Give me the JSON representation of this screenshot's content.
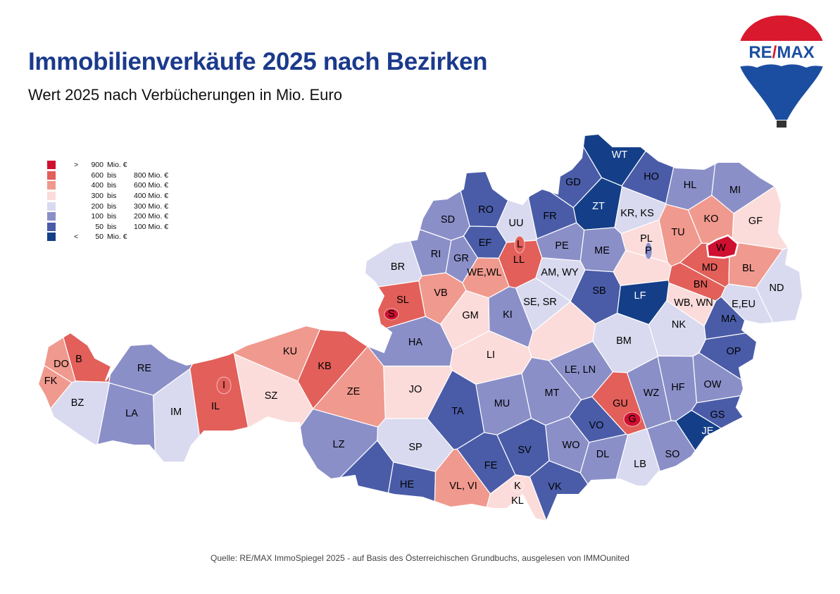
{
  "title": "Immobilienverkäufe 2025 nach Bezirken",
  "subtitle": "Wert 2025 nach Verbücherungen in Mio. Euro",
  "logo_text": "RE/MAX",
  "source": "Quelle: RE/MAX ImmoSpiegel 2025 - auf Basis des Österreichischen Grundbuchs, ausgelesen von IMMOunited",
  "legend": [
    {
      "sym": ">",
      "from": "900",
      "bis": "Mio. €",
      "to": "",
      "color": "#cf1030"
    },
    {
      "sym": "",
      "from": "600",
      "bis": "bis",
      "to": "800 Mio. €",
      "color": "#e25f5a"
    },
    {
      "sym": "",
      "from": "400",
      "bis": "bis",
      "to": "600 Mio. €",
      "color": "#f0998e"
    },
    {
      "sym": "",
      "from": "300",
      "bis": "bis",
      "to": "400 Mio. €",
      "color": "#fbdcda"
    },
    {
      "sym": "",
      "from": "200",
      "bis": "bis",
      "to": "300 Mio. €",
      "color": "#d9daef"
    },
    {
      "sym": "",
      "from": "100",
      "bis": "bis",
      "to": "200 Mio. €",
      "color": "#8a8fc8"
    },
    {
      "sym": "",
      "from": "50",
      "bis": "bis",
      "to": "100 Mio. €",
      "color": "#4a5ca8"
    },
    {
      "sym": "<",
      "from": "50",
      "bis": "Mio. €",
      "to": "",
      "color": "#143f88"
    }
  ],
  "districts": [
    {
      "code": "B",
      "class": 1
    },
    {
      "code": "DO",
      "class": 2
    },
    {
      "code": "FK",
      "class": 2
    },
    {
      "code": "BZ",
      "class": 4
    },
    {
      "code": "RE",
      "class": 5
    },
    {
      "code": "LA",
      "class": 5
    },
    {
      "code": "IM",
      "class": 4
    },
    {
      "code": "IL",
      "class": 1
    },
    {
      "code": "SZ",
      "class": 3
    },
    {
      "code": "KU",
      "class": 2
    },
    {
      "code": "KB",
      "class": 1
    },
    {
      "code": "ZE",
      "class": 2
    },
    {
      "code": "JO",
      "class": 3
    },
    {
      "code": "HA",
      "class": 5
    },
    {
      "code": "SL",
      "class": 1
    },
    {
      "code": "BR",
      "class": 4
    },
    {
      "code": "VB",
      "class": 2
    },
    {
      "code": "GM",
      "class": 3
    },
    {
      "code": "RI",
      "class": 5
    },
    {
      "code": "SD",
      "class": 5
    },
    {
      "code": "GR",
      "class": 5
    },
    {
      "code": "RO",
      "class": 6
    },
    {
      "code": "EF",
      "class": 6
    },
    {
      "code": "UU",
      "class": 4
    },
    {
      "code": "FR",
      "class": 6
    },
    {
      "code": "PE",
      "class": 5
    },
    {
      "code": "LL",
      "class": 1
    },
    {
      "code": "WE,WL",
      "class": 2
    },
    {
      "code": "AM, WY",
      "class": 4
    },
    {
      "code": "SE, SR",
      "class": 4
    },
    {
      "code": "KI",
      "class": 5
    },
    {
      "code": "LI",
      "class": 3
    },
    {
      "code": "GD",
      "class": 6
    },
    {
      "code": "WT",
      "class": 7
    },
    {
      "code": "ZT",
      "class": 7
    },
    {
      "code": "HO",
      "class": 6
    },
    {
      "code": "HL",
      "class": 5
    },
    {
      "code": "MI",
      "class": 5
    },
    {
      "code": "KR, KS",
      "class": 4
    },
    {
      "code": "ME",
      "class": 5
    },
    {
      "code": "PL",
      "class": 3
    },
    {
      "code": "TU",
      "class": 2
    },
    {
      "code": "KO",
      "class": 2
    },
    {
      "code": "GF",
      "class": 3
    },
    {
      "code": "MD",
      "class": 1
    },
    {
      "code": "BL",
      "class": 2
    },
    {
      "code": "BN",
      "class": 1
    },
    {
      "code": "ND",
      "class": 4
    },
    {
      "code": "SB",
      "class": 6
    },
    {
      "code": "LF",
      "class": 7
    },
    {
      "code": "WB, WN",
      "class": 3
    },
    {
      "code": "E,EU",
      "class": 4
    },
    {
      "code": "NK",
      "class": 4
    },
    {
      "code": "MA",
      "class": 6
    },
    {
      "code": "BM",
      "class": 4
    },
    {
      "code": "OP",
      "class": 6
    },
    {
      "code": "OW",
      "class": 5
    },
    {
      "code": "GS",
      "class": 6
    },
    {
      "code": "JE",
      "class": 7
    },
    {
      "code": "HF",
      "class": 5
    },
    {
      "code": "WZ",
      "class": 5
    },
    {
      "code": "GU",
      "class": 1
    },
    {
      "code": "VO",
      "class": 6
    },
    {
      "code": "SO",
      "class": 5
    },
    {
      "code": "LB",
      "class": 4
    },
    {
      "code": "DL",
      "class": 5
    },
    {
      "code": "WO",
      "class": 5
    },
    {
      "code": "LE, LN",
      "class": 5
    },
    {
      "code": "MT",
      "class": 5
    },
    {
      "code": "MU",
      "class": 5
    },
    {
      "code": "TA",
      "class": 6
    },
    {
      "code": "LZ",
      "class": 5
    },
    {
      "code": "SP",
      "class": 4
    },
    {
      "code": "HE",
      "class": 6
    },
    {
      "code": "FE",
      "class": 6
    },
    {
      "code": "SV",
      "class": 6
    },
    {
      "code": "VK",
      "class": 6
    },
    {
      "code": "VL, VI",
      "class": 2
    },
    {
      "code": "KL",
      "class": 3
    }
  ],
  "cities": [
    {
      "code": "S",
      "class": 0
    },
    {
      "code": "L",
      "class": 1
    },
    {
      "code": "I",
      "class": 1
    },
    {
      "code": "P",
      "class": 5
    },
    {
      "code": "G",
      "class": 0
    },
    {
      "code": "K",
      "class": 3
    },
    {
      "code": "W",
      "class": 0
    }
  ]
}
